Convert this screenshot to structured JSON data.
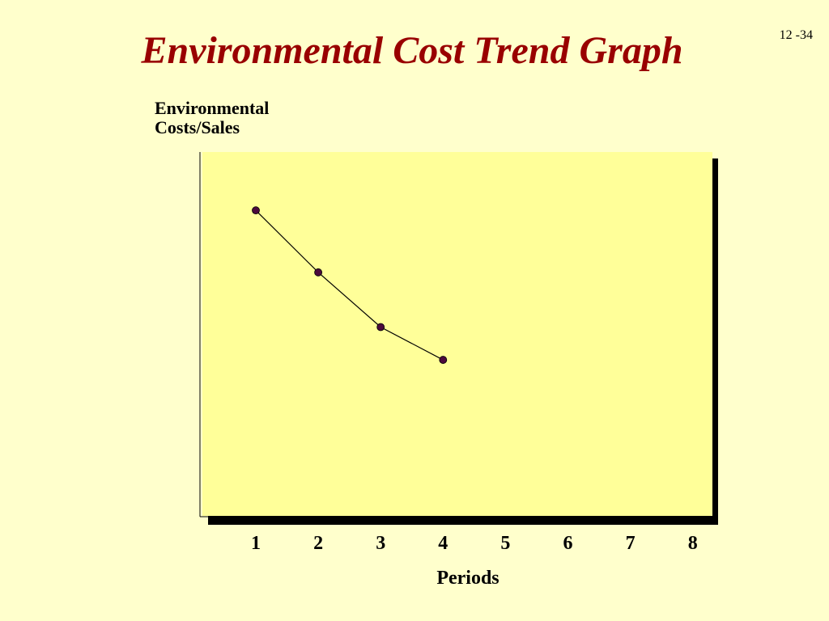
{
  "slide": {
    "title": "Environmental Cost Trend Graph",
    "number": "12 -34"
  },
  "chart_data": {
    "type": "line",
    "title": "Environmental Cost Trend Graph",
    "ylabel": "Environmental\nCosts/Sales",
    "xlabel": "Periods",
    "categories": [
      "1",
      "2",
      "3",
      "4",
      "5",
      "6",
      "7",
      "8"
    ],
    "x": [
      1,
      2,
      3,
      4
    ],
    "values": [
      0.84,
      0.67,
      0.52,
      0.43
    ],
    "ylim": [
      0,
      1
    ],
    "grid": false,
    "legend": "none",
    "colors": {
      "plot_background": "#ffff99",
      "plot_shadow": "#000000",
      "line": "#000000",
      "marker": "#4b0a3c",
      "title": "#990000"
    }
  }
}
